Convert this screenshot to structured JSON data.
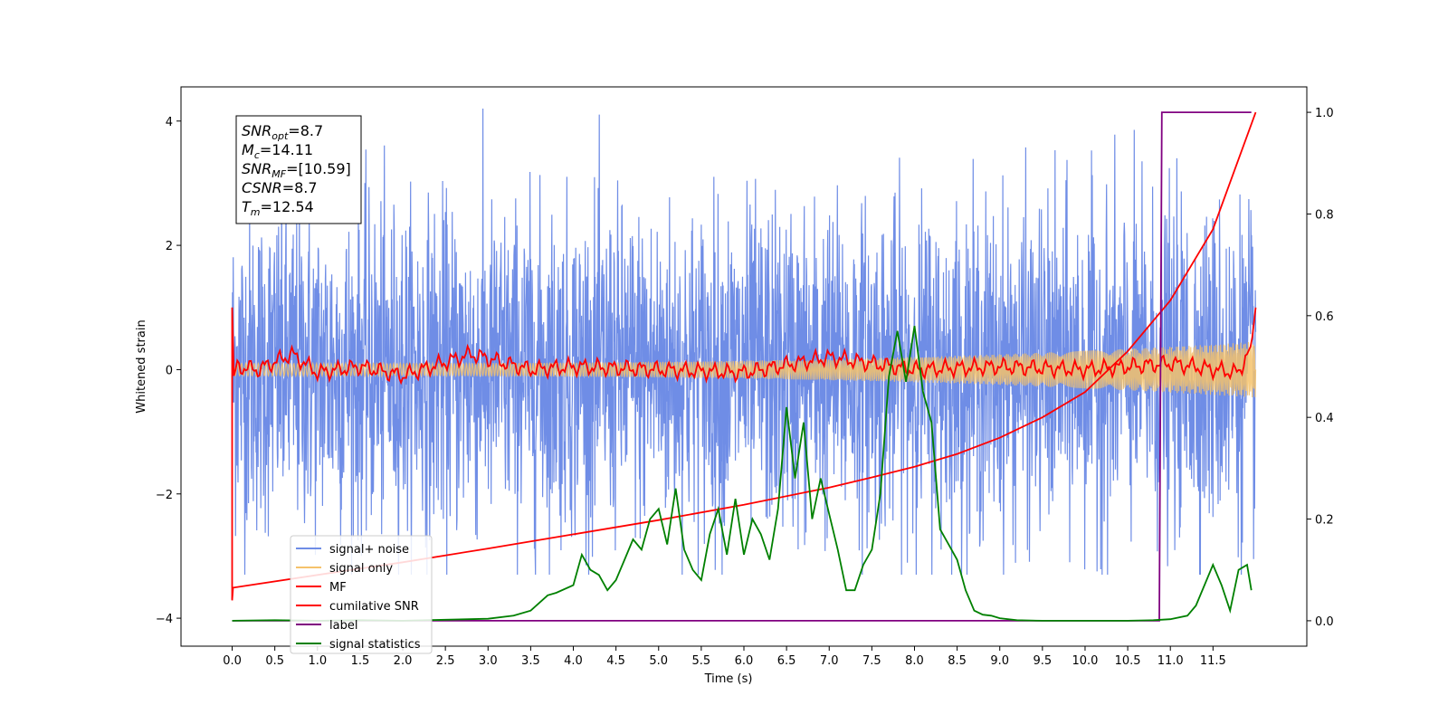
{
  "chart_data": {
    "type": "line",
    "xlabel": "Time (s)",
    "ylabel": "Whitened strain",
    "xlim": [
      -0.6,
      12.6
    ],
    "ylim": [
      -4.45,
      4.55
    ],
    "y2lim": [
      -0.05,
      1.05
    ],
    "xticks": [
      "0.0",
      "0.5",
      "1.0",
      "1.5",
      "2.0",
      "2.5",
      "3.0",
      "3.5",
      "4.0",
      "4.5",
      "5.0",
      "5.5",
      "6.0",
      "6.5",
      "7.0",
      "7.5",
      "8.0",
      "8.5",
      "9.0",
      "9.5",
      "10.0",
      "10.5",
      "11.0",
      "11.5"
    ],
    "yticks": [
      "−4",
      "−2",
      "0",
      "2",
      "4"
    ],
    "y2ticks": [
      "0.0",
      "0.2",
      "0.4",
      "0.6",
      "0.8",
      "1.0"
    ],
    "legend_position": "lower-left",
    "stats_box": {
      "lines": [
        {
          "sym": "SNR",
          "sub": "opt",
          "val": "=8.7"
        },
        {
          "sym": "M",
          "sub": "c",
          "val": "=14.11"
        },
        {
          "sym": "SNR",
          "sub": "MF",
          "val": "=[10.59]"
        },
        {
          "sym": "CSNR",
          "sub": "",
          "val": "=8.7"
        },
        {
          "sym": "T",
          "sub": "m",
          "val": "=12.54"
        }
      ]
    },
    "series": [
      {
        "name": "signal+ noise",
        "color": "#6f8de6",
        "axis": "left",
        "kind": "noise",
        "x_range": [
          0,
          12
        ],
        "amplitude": 1.3
      },
      {
        "name": "signal only",
        "color": "#f5c26b",
        "axis": "left",
        "kind": "chirp",
        "x_range": [
          0,
          12
        ],
        "amplitude_end": 0.45
      },
      {
        "name": "MF",
        "color": "#ff0000",
        "axis": "left",
        "kind": "mf",
        "x": [
          0.0,
          0.02,
          0.05,
          0.3,
          0.7,
          1.0,
          1.5,
          2.0,
          2.8,
          3.5,
          4.0,
          5.0,
          6.0,
          7.0,
          8.0,
          9.0,
          10.0,
          11.0,
          11.8,
          11.95,
          12.0
        ],
        "y": [
          1.0,
          -0.1,
          0.05,
          0.0,
          0.25,
          -0.05,
          0.05,
          -0.1,
          0.25,
          0.0,
          0.05,
          0.0,
          -0.05,
          0.2,
          0.0,
          0.05,
          0.0,
          0.1,
          -0.05,
          0.4,
          1.0
        ]
      },
      {
        "name": "cumilative SNR",
        "color": "#ff0000",
        "axis": "right",
        "x": [
          0.0,
          0.01,
          1.0,
          2.0,
          3.0,
          4.0,
          5.0,
          6.0,
          7.0,
          7.5,
          8.0,
          8.5,
          9.0,
          9.5,
          10.0,
          10.5,
          11.0,
          11.5,
          12.0
        ],
        "y": [
          0.04,
          0.065,
          0.09,
          0.115,
          0.142,
          0.17,
          0.198,
          0.228,
          0.262,
          0.282,
          0.303,
          0.328,
          0.36,
          0.4,
          0.45,
          0.53,
          0.63,
          0.77,
          1.0
        ]
      },
      {
        "name": "label",
        "color": "#800080",
        "axis": "right",
        "x": [
          0.0,
          10.87,
          10.9,
          11.95
        ],
        "y": [
          0.0,
          0.0,
          1.0,
          1.0
        ]
      },
      {
        "name": "signal statistics",
        "color": "#008000",
        "axis": "right",
        "x": [
          0.0,
          0.5,
          1.0,
          1.5,
          2.0,
          2.5,
          3.0,
          3.3,
          3.5,
          3.7,
          3.8,
          4.0,
          4.1,
          4.2,
          4.3,
          4.4,
          4.5,
          4.6,
          4.7,
          4.8,
          4.9,
          5.0,
          5.1,
          5.2,
          5.3,
          5.4,
          5.5,
          5.6,
          5.7,
          5.8,
          5.9,
          6.0,
          6.1,
          6.2,
          6.3,
          6.4,
          6.5,
          6.6,
          6.7,
          6.8,
          6.9,
          7.0,
          7.1,
          7.2,
          7.3,
          7.4,
          7.5,
          7.6,
          7.7,
          7.8,
          7.9,
          8.0,
          8.1,
          8.2,
          8.3,
          8.4,
          8.5,
          8.6,
          8.7,
          8.8,
          8.9,
          9.0,
          9.2,
          9.5,
          10.0,
          10.5,
          10.8,
          11.0,
          11.2,
          11.3,
          11.4,
          11.5,
          11.6,
          11.7,
          11.8,
          11.9,
          11.95
        ],
        "y": [
          0.0,
          0.001,
          0.0,
          0.001,
          0.0,
          0.002,
          0.004,
          0.01,
          0.02,
          0.05,
          0.055,
          0.07,
          0.13,
          0.1,
          0.09,
          0.06,
          0.08,
          0.12,
          0.16,
          0.14,
          0.2,
          0.22,
          0.15,
          0.26,
          0.14,
          0.1,
          0.08,
          0.17,
          0.22,
          0.13,
          0.24,
          0.13,
          0.2,
          0.17,
          0.12,
          0.22,
          0.42,
          0.28,
          0.39,
          0.2,
          0.28,
          0.21,
          0.14,
          0.06,
          0.06,
          0.11,
          0.14,
          0.25,
          0.48,
          0.57,
          0.47,
          0.58,
          0.45,
          0.39,
          0.18,
          0.15,
          0.12,
          0.06,
          0.02,
          0.012,
          0.01,
          0.005,
          0.001,
          0.0,
          0.0,
          0.0,
          0.001,
          0.003,
          0.01,
          0.03,
          0.07,
          0.11,
          0.07,
          0.02,
          0.1,
          0.11,
          0.06
        ]
      }
    ]
  }
}
